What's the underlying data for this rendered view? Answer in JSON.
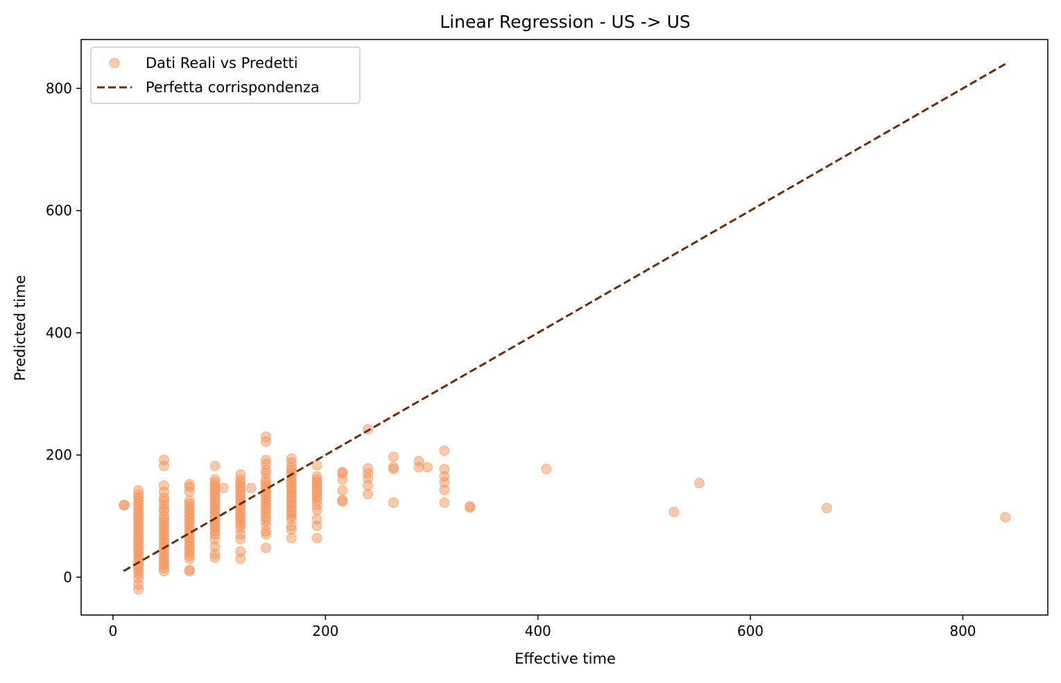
{
  "chart_data": {
    "type": "scatter",
    "title": "Linear Regression - US -> US",
    "xlabel": "Effective time",
    "ylabel": "Predicted time",
    "xlim": [
      -30,
      880
    ],
    "ylim": [
      -62,
      880
    ],
    "xticks": [
      0,
      200,
      400,
      600,
      800
    ],
    "yticks": [
      0,
      200,
      400,
      600,
      800
    ],
    "grid": false,
    "legend_position": "top-left",
    "colors": {
      "scatter": "#f4935a",
      "line": "#6b2c08"
    },
    "series": [
      {
        "name": "Dati Reali vs Predetti",
        "type": "scatter",
        "points": [
          [
            10,
            118
          ],
          [
            11,
            118
          ],
          [
            24,
            -20
          ],
          [
            24,
            -12
          ],
          [
            24,
            -2
          ],
          [
            24,
            5
          ],
          [
            24,
            10
          ],
          [
            24,
            15
          ],
          [
            24,
            20
          ],
          [
            24,
            25
          ],
          [
            24,
            30
          ],
          [
            24,
            35
          ],
          [
            24,
            40
          ],
          [
            24,
            45
          ],
          [
            24,
            50
          ],
          [
            24,
            55
          ],
          [
            24,
            60
          ],
          [
            24,
            65
          ],
          [
            24,
            70
          ],
          [
            24,
            75
          ],
          [
            24,
            80
          ],
          [
            24,
            85
          ],
          [
            24,
            90
          ],
          [
            24,
            95
          ],
          [
            24,
            100
          ],
          [
            24,
            105
          ],
          [
            24,
            110
          ],
          [
            24,
            115
          ],
          [
            24,
            120
          ],
          [
            24,
            125
          ],
          [
            24,
            130
          ],
          [
            24,
            135
          ],
          [
            24,
            142
          ],
          [
            48,
            10
          ],
          [
            48,
            15
          ],
          [
            48,
            20
          ],
          [
            48,
            25
          ],
          [
            48,
            30
          ],
          [
            48,
            35
          ],
          [
            48,
            40
          ],
          [
            48,
            45
          ],
          [
            48,
            50
          ],
          [
            48,
            55
          ],
          [
            48,
            60
          ],
          [
            48,
            65
          ],
          [
            48,
            70
          ],
          [
            48,
            75
          ],
          [
            48,
            80
          ],
          [
            48,
            85
          ],
          [
            48,
            90
          ],
          [
            48,
            95
          ],
          [
            48,
            100
          ],
          [
            48,
            108
          ],
          [
            48,
            112
          ],
          [
            48,
            118
          ],
          [
            48,
            125
          ],
          [
            48,
            130
          ],
          [
            48,
            140
          ],
          [
            48,
            150
          ],
          [
            48,
            182
          ],
          [
            48,
            192
          ],
          [
            72,
            10
          ],
          [
            72,
            12
          ],
          [
            72,
            30
          ],
          [
            72,
            35
          ],
          [
            72,
            40
          ],
          [
            72,
            45
          ],
          [
            72,
            50
          ],
          [
            72,
            55
          ],
          [
            72,
            60
          ],
          [
            72,
            65
          ],
          [
            72,
            70
          ],
          [
            72,
            75
          ],
          [
            72,
            80
          ],
          [
            72,
            85
          ],
          [
            72,
            90
          ],
          [
            72,
            95
          ],
          [
            72,
            100
          ],
          [
            72,
            105
          ],
          [
            72,
            110
          ],
          [
            72,
            115
          ],
          [
            72,
            120
          ],
          [
            72,
            125
          ],
          [
            72,
            140
          ],
          [
            72,
            148
          ],
          [
            72,
            152
          ],
          [
            96,
            32
          ],
          [
            96,
            38
          ],
          [
            96,
            50
          ],
          [
            96,
            62
          ],
          [
            96,
            70
          ],
          [
            96,
            75
          ],
          [
            96,
            80
          ],
          [
            96,
            85
          ],
          [
            96,
            90
          ],
          [
            96,
            95
          ],
          [
            96,
            100
          ],
          [
            96,
            105
          ],
          [
            96,
            110
          ],
          [
            96,
            115
          ],
          [
            96,
            120
          ],
          [
            96,
            125
          ],
          [
            96,
            130
          ],
          [
            96,
            135
          ],
          [
            96,
            140
          ],
          [
            96,
            145
          ],
          [
            96,
            150
          ],
          [
            96,
            155
          ],
          [
            96,
            160
          ],
          [
            96,
            182
          ],
          [
            104,
            146
          ],
          [
            120,
            30
          ],
          [
            120,
            42
          ],
          [
            120,
            62
          ],
          [
            120,
            70
          ],
          [
            120,
            80
          ],
          [
            120,
            85
          ],
          [
            120,
            90
          ],
          [
            120,
            95
          ],
          [
            120,
            100
          ],
          [
            120,
            105
          ],
          [
            120,
            110
          ],
          [
            120,
            115
          ],
          [
            120,
            120
          ],
          [
            120,
            125
          ],
          [
            120,
            130
          ],
          [
            120,
            135
          ],
          [
            120,
            140
          ],
          [
            120,
            145
          ],
          [
            120,
            150
          ],
          [
            120,
            155
          ],
          [
            120,
            160
          ],
          [
            120,
            168
          ],
          [
            130,
            146
          ],
          [
            144,
            48
          ],
          [
            144,
            70
          ],
          [
            144,
            75
          ],
          [
            144,
            85
          ],
          [
            144,
            92
          ],
          [
            144,
            98
          ],
          [
            144,
            104
          ],
          [
            144,
            110
          ],
          [
            144,
            115
          ],
          [
            144,
            120
          ],
          [
            144,
            125
          ],
          [
            144,
            130
          ],
          [
            144,
            135
          ],
          [
            144,
            140
          ],
          [
            144,
            145
          ],
          [
            144,
            150
          ],
          [
            144,
            155
          ],
          [
            144,
            160
          ],
          [
            144,
            170
          ],
          [
            144,
            175
          ],
          [
            144,
            185
          ],
          [
            144,
            192
          ],
          [
            144,
            222
          ],
          [
            144,
            230
          ],
          [
            168,
            64
          ],
          [
            168,
            78
          ],
          [
            168,
            84
          ],
          [
            168,
            95
          ],
          [
            168,
            100
          ],
          [
            168,
            105
          ],
          [
            168,
            110
          ],
          [
            168,
            115
          ],
          [
            168,
            120
          ],
          [
            168,
            125
          ],
          [
            168,
            130
          ],
          [
            168,
            135
          ],
          [
            168,
            140
          ],
          [
            168,
            145
          ],
          [
            168,
            150
          ],
          [
            168,
            155
          ],
          [
            168,
            160
          ],
          [
            168,
            165
          ],
          [
            168,
            170
          ],
          [
            168,
            175
          ],
          [
            168,
            180
          ],
          [
            168,
            188
          ],
          [
            168,
            194
          ],
          [
            192,
            64
          ],
          [
            192,
            84
          ],
          [
            192,
            95
          ],
          [
            192,
            110
          ],
          [
            192,
            118
          ],
          [
            192,
            125
          ],
          [
            192,
            130
          ],
          [
            192,
            135
          ],
          [
            192,
            140
          ],
          [
            192,
            145
          ],
          [
            192,
            150
          ],
          [
            192,
            155
          ],
          [
            192,
            160
          ],
          [
            192,
            165
          ],
          [
            192,
            183
          ],
          [
            216,
            124
          ],
          [
            216,
            126
          ],
          [
            216,
            142
          ],
          [
            216,
            160
          ],
          [
            216,
            170
          ],
          [
            216,
            172
          ],
          [
            240,
            136
          ],
          [
            240,
            150
          ],
          [
            240,
            162
          ],
          [
            240,
            170
          ],
          [
            240,
            178
          ],
          [
            240,
            242
          ],
          [
            264,
            122
          ],
          [
            264,
            177
          ],
          [
            264,
            180
          ],
          [
            264,
            197
          ],
          [
            288,
            180
          ],
          [
            288,
            190
          ],
          [
            296,
            180
          ],
          [
            312,
            122
          ],
          [
            312,
            143
          ],
          [
            312,
            155
          ],
          [
            312,
            165
          ],
          [
            312,
            177
          ],
          [
            312,
            207
          ],
          [
            336,
            114
          ],
          [
            336,
            116
          ],
          [
            408,
            177
          ],
          [
            528,
            107
          ],
          [
            552,
            154
          ],
          [
            672,
            113
          ],
          [
            840,
            98
          ]
        ]
      },
      {
        "name": "Perfetta corrispondenza",
        "type": "line",
        "style": "dashed",
        "points": [
          [
            10,
            10
          ],
          [
            840,
            840
          ]
        ]
      }
    ]
  }
}
